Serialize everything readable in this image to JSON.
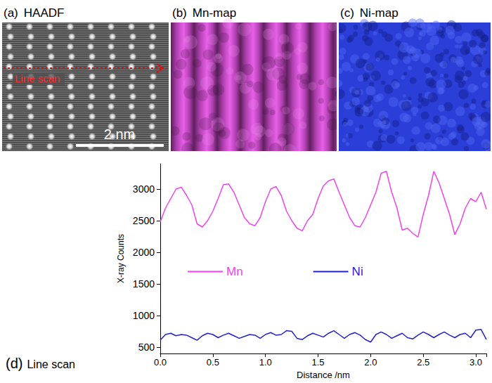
{
  "panels": [
    {
      "label": "(a)",
      "title": "HAADF",
      "annotations": {
        "line_scan": "Line scan",
        "scale_bar": "2 nm"
      }
    },
    {
      "label": "(b)",
      "title": "Mn-map"
    },
    {
      "label": "(c)",
      "title": "Ni-map"
    }
  ],
  "chart_data": {
    "type": "line",
    "panel_label": "(d)",
    "title": "Line scan",
    "x_label": "Distance /nm",
    "y_label": "X-ray Counts",
    "x": [
      0,
      0.05,
      0.1,
      0.15,
      0.2,
      0.25,
      0.3,
      0.35,
      0.4,
      0.45,
      0.5,
      0.55,
      0.6,
      0.65,
      0.7,
      0.75,
      0.8,
      0.85,
      0.9,
      0.95,
      1.0,
      1.05,
      1.1,
      1.15,
      1.2,
      1.25,
      1.3,
      1.35,
      1.4,
      1.45,
      1.5,
      1.55,
      1.6,
      1.65,
      1.7,
      1.75,
      1.8,
      1.85,
      1.9,
      1.95,
      2.0,
      2.05,
      2.1,
      2.15,
      2.2,
      2.25,
      2.3,
      2.35,
      2.4,
      2.45,
      2.5,
      2.55,
      2.6,
      2.65,
      2.7,
      2.75,
      2.8,
      2.85,
      2.9,
      2.95,
      3.0,
      3.05,
      3.1
    ],
    "series": [
      {
        "name": "Mn",
        "color": "#ee44ee",
        "values": [
          2480,
          2700,
          2850,
          3000,
          3030,
          2900,
          2750,
          2450,
          2400,
          2500,
          2650,
          2850,
          3070,
          3080,
          2950,
          2750,
          2550,
          2450,
          2420,
          2550,
          2800,
          3000,
          3040,
          2900,
          2650,
          2500,
          2380,
          2340,
          2500,
          2600,
          2850,
          3050,
          3130,
          3160,
          2950,
          2750,
          2550,
          2420,
          2400,
          2550,
          2750,
          2950,
          3250,
          3280,
          2950,
          2700,
          2350,
          2380,
          2300,
          2240,
          2600,
          2900,
          3280,
          3100,
          2850,
          2600,
          2280,
          2450,
          2700,
          2850,
          2800,
          2950,
          2680
        ]
      },
      {
        "name": "Ni",
        "color": "#2222cc",
        "values": [
          610,
          700,
          720,
          680,
          700,
          690,
          650,
          610,
          680,
          720,
          700,
          650,
          690,
          720,
          680,
          640,
          670,
          700,
          690,
          640,
          700,
          730,
          690,
          700,
          760,
          750,
          640,
          620,
          680,
          720,
          690,
          660,
          720,
          760,
          700,
          640,
          700,
          730,
          690,
          620,
          580,
          700,
          740,
          700,
          640,
          680,
          720,
          650,
          630,
          690,
          740,
          700,
          650,
          700,
          740,
          690,
          650,
          700,
          720,
          650,
          770,
          780,
          620
        ]
      }
    ],
    "xlim": [
      0,
      3.1
    ],
    "xticks": [
      {
        "value": 0,
        "label": "0.0"
      },
      {
        "value": 0.5,
        "label": "0.5"
      },
      {
        "value": 1,
        "label": "1.0"
      },
      {
        "value": 1.5,
        "label": "1.5"
      },
      {
        "value": 2,
        "label": "2.0"
      },
      {
        "value": 2.5,
        "label": "2.5"
      },
      {
        "value": 3,
        "label": "3.0"
      }
    ],
    "ylim": [
      400,
      3400
    ],
    "yticks": [
      500,
      1000,
      1500,
      2000,
      2500,
      3000
    ],
    "grid": false,
    "legend": "center"
  }
}
